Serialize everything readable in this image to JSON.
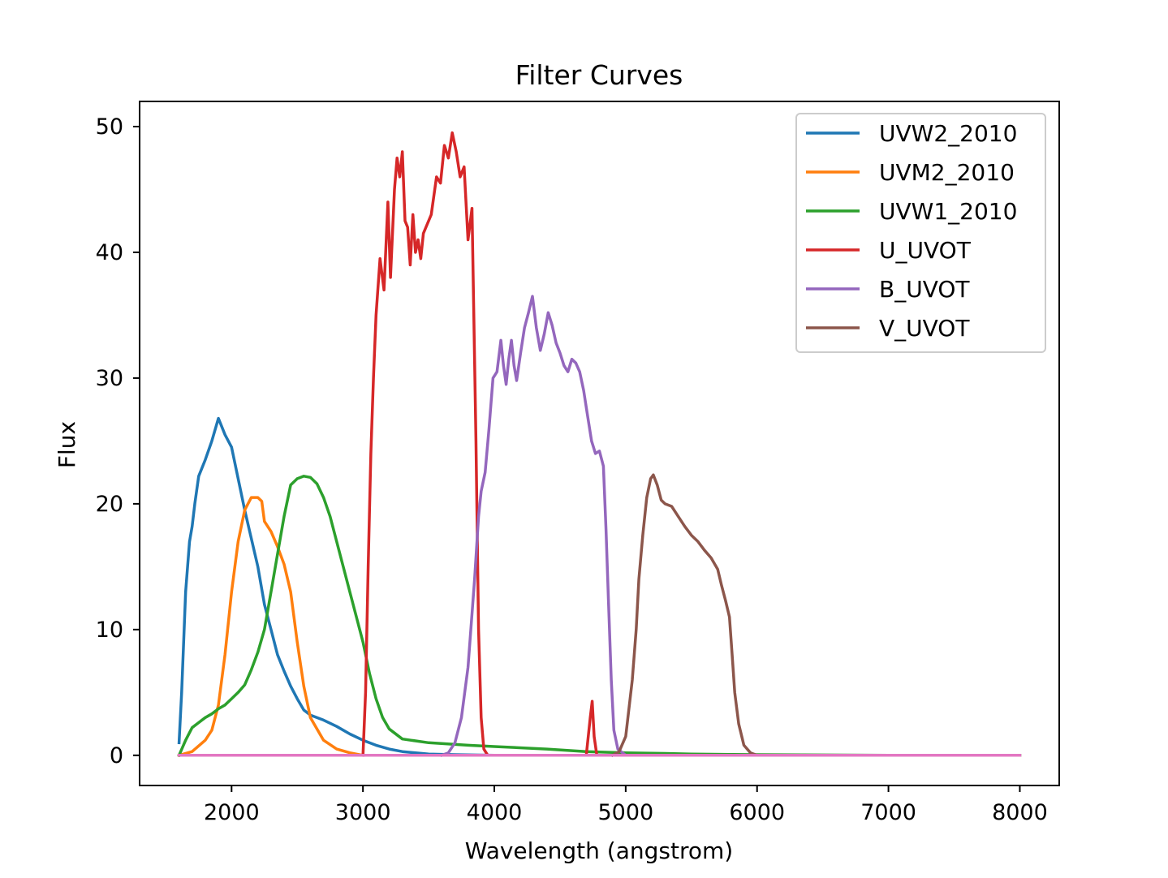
{
  "chart_data": {
    "type": "line",
    "title": "Filter Curves",
    "xlabel": "Wavelength (angstrom)",
    "ylabel": "Flux",
    "xlim": [
      1300,
      8300
    ],
    "ylim": [
      -2.4,
      52
    ],
    "xticks": [
      2000,
      3000,
      4000,
      5000,
      6000,
      7000,
      8000
    ],
    "yticks": [
      0,
      10,
      20,
      30,
      40,
      50
    ],
    "grid": false,
    "legend_position": "top-right",
    "series": [
      {
        "name": "UVW2_2010",
        "color": "#1f77b4",
        "points": [
          [
            1600,
            1
          ],
          [
            1620,
            5
          ],
          [
            1650,
            13
          ],
          [
            1680,
            17
          ],
          [
            1700,
            18.2
          ],
          [
            1720,
            20
          ],
          [
            1750,
            22.2
          ],
          [
            1800,
            23.5
          ],
          [
            1850,
            25
          ],
          [
            1900,
            26.8
          ],
          [
            1950,
            25.5
          ],
          [
            2000,
            24.5
          ],
          [
            2050,
            22
          ],
          [
            2100,
            19.5
          ],
          [
            2200,
            15
          ],
          [
            2250,
            12
          ],
          [
            2300,
            10
          ],
          [
            2350,
            8
          ],
          [
            2400,
            6.7
          ],
          [
            2450,
            5.5
          ],
          [
            2500,
            4.5
          ],
          [
            2550,
            3.6
          ],
          [
            2600,
            3.2
          ],
          [
            2700,
            2.8
          ],
          [
            2800,
            2.3
          ],
          [
            2900,
            1.7
          ],
          [
            3000,
            1.2
          ],
          [
            3100,
            0.8
          ],
          [
            3200,
            0.5
          ],
          [
            3300,
            0.3
          ],
          [
            3500,
            0.1
          ],
          [
            3700,
            0.05
          ],
          [
            4000,
            0
          ],
          [
            5000,
            0
          ],
          [
            6000,
            0
          ]
        ]
      },
      {
        "name": "UVM2_2010",
        "color": "#ff7f0e",
        "points": [
          [
            1600,
            0
          ],
          [
            1700,
            0.3
          ],
          [
            1800,
            1.2
          ],
          [
            1850,
            2
          ],
          [
            1900,
            4
          ],
          [
            1950,
            8
          ],
          [
            2000,
            13
          ],
          [
            2050,
            17
          ],
          [
            2100,
            19.5
          ],
          [
            2150,
            20.5
          ],
          [
            2200,
            20.5
          ],
          [
            2230,
            20.2
          ],
          [
            2250,
            18.6
          ],
          [
            2300,
            17.8
          ],
          [
            2350,
            16.6
          ],
          [
            2400,
            15.2
          ],
          [
            2450,
            13
          ],
          [
            2500,
            9
          ],
          [
            2550,
            5.5
          ],
          [
            2600,
            3
          ],
          [
            2700,
            1.2
          ],
          [
            2800,
            0.5
          ],
          [
            2900,
            0.2
          ],
          [
            3000,
            0
          ],
          [
            5500,
            0
          ]
        ]
      },
      {
        "name": "UVW1_2010",
        "color": "#2ca02c",
        "points": [
          [
            1600,
            0
          ],
          [
            1650,
            1.2
          ],
          [
            1700,
            2.2
          ],
          [
            1750,
            2.6
          ],
          [
            1800,
            3
          ],
          [
            1850,
            3.3
          ],
          [
            1900,
            3.7
          ],
          [
            1950,
            4
          ],
          [
            2000,
            4.5
          ],
          [
            2050,
            5
          ],
          [
            2100,
            5.6
          ],
          [
            2150,
            6.8
          ],
          [
            2200,
            8.2
          ],
          [
            2250,
            10
          ],
          [
            2300,
            13
          ],
          [
            2350,
            16
          ],
          [
            2400,
            19
          ],
          [
            2450,
            21.5
          ],
          [
            2500,
            22
          ],
          [
            2550,
            22.2
          ],
          [
            2600,
            22.1
          ],
          [
            2650,
            21.6
          ],
          [
            2700,
            20.5
          ],
          [
            2750,
            19
          ],
          [
            2800,
            17
          ],
          [
            2850,
            15
          ],
          [
            2900,
            13
          ],
          [
            2950,
            11
          ],
          [
            3000,
            9
          ],
          [
            3050,
            6.5
          ],
          [
            3100,
            4.5
          ],
          [
            3150,
            3
          ],
          [
            3200,
            2.1
          ],
          [
            3300,
            1.3
          ],
          [
            3500,
            1
          ],
          [
            3800,
            0.8
          ],
          [
            4000,
            0.7
          ],
          [
            4400,
            0.5
          ],
          [
            4700,
            0.3
          ],
          [
            5000,
            0.2
          ],
          [
            5300,
            0.15
          ],
          [
            5500,
            0.1
          ],
          [
            6000,
            0.05
          ],
          [
            7000,
            0
          ],
          [
            8000,
            0
          ]
        ]
      },
      {
        "name": "U_UVOT",
        "color": "#d62728",
        "points": [
          [
            3000,
            0
          ],
          [
            3020,
            5
          ],
          [
            3040,
            15
          ],
          [
            3060,
            24
          ],
          [
            3080,
            30
          ],
          [
            3100,
            35
          ],
          [
            3130,
            39.5
          ],
          [
            3160,
            37
          ],
          [
            3190,
            44
          ],
          [
            3210,
            38
          ],
          [
            3240,
            45
          ],
          [
            3260,
            47.5
          ],
          [
            3280,
            46
          ],
          [
            3300,
            48
          ],
          [
            3320,
            42.5
          ],
          [
            3340,
            42
          ],
          [
            3360,
            39
          ],
          [
            3380,
            43
          ],
          [
            3400,
            40
          ],
          [
            3420,
            41
          ],
          [
            3440,
            39.5
          ],
          [
            3460,
            41.5
          ],
          [
            3480,
            42
          ],
          [
            3520,
            43
          ],
          [
            3560,
            46
          ],
          [
            3590,
            45.5
          ],
          [
            3620,
            48.5
          ],
          [
            3650,
            47.5
          ],
          [
            3680,
            49.5
          ],
          [
            3710,
            48
          ],
          [
            3740,
            46
          ],
          [
            3770,
            46.8
          ],
          [
            3800,
            41
          ],
          [
            3830,
            43.5
          ],
          [
            3860,
            25
          ],
          [
            3880,
            10
          ],
          [
            3900,
            3
          ],
          [
            3920,
            0.5
          ],
          [
            3950,
            0
          ],
          [
            4700,
            0
          ],
          [
            4730,
            3
          ],
          [
            4745,
            4.3
          ],
          [
            4760,
            1.5
          ],
          [
            4780,
            0
          ],
          [
            5000,
            0
          ]
        ]
      },
      {
        "name": "B_UVOT",
        "color": "#9467bd",
        "points": [
          [
            3600,
            0
          ],
          [
            3650,
            0.2
          ],
          [
            3700,
            1
          ],
          [
            3750,
            3
          ],
          [
            3800,
            7
          ],
          [
            3850,
            14
          ],
          [
            3880,
            19
          ],
          [
            3900,
            21
          ],
          [
            3930,
            22.5
          ],
          [
            3960,
            26
          ],
          [
            3990,
            30
          ],
          [
            4020,
            30.5
          ],
          [
            4050,
            33
          ],
          [
            4070,
            31
          ],
          [
            4090,
            29.5
          ],
          [
            4110,
            31.5
          ],
          [
            4130,
            33
          ],
          [
            4150,
            31
          ],
          [
            4170,
            29.8
          ],
          [
            4200,
            32
          ],
          [
            4230,
            34
          ],
          [
            4260,
            35.2
          ],
          [
            4290,
            36.5
          ],
          [
            4320,
            34
          ],
          [
            4350,
            32.2
          ],
          [
            4380,
            33.5
          ],
          [
            4410,
            35.2
          ],
          [
            4440,
            34.2
          ],
          [
            4470,
            32.8
          ],
          [
            4500,
            32
          ],
          [
            4530,
            31
          ],
          [
            4560,
            30.5
          ],
          [
            4590,
            31.5
          ],
          [
            4620,
            31.2
          ],
          [
            4650,
            30.5
          ],
          [
            4680,
            29
          ],
          [
            4710,
            27
          ],
          [
            4740,
            25
          ],
          [
            4770,
            24
          ],
          [
            4800,
            24.2
          ],
          [
            4830,
            23
          ],
          [
            4850,
            18
          ],
          [
            4870,
            12
          ],
          [
            4890,
            6
          ],
          [
            4910,
            2
          ],
          [
            4940,
            0.5
          ],
          [
            5000,
            0
          ],
          [
            5600,
            0
          ],
          [
            6000,
            0
          ]
        ]
      },
      {
        "name": "V_UVOT",
        "color": "#8c564b",
        "points": [
          [
            4900,
            0
          ],
          [
            4950,
            0.3
          ],
          [
            5000,
            1.5
          ],
          [
            5050,
            6
          ],
          [
            5080,
            10
          ],
          [
            5100,
            14
          ],
          [
            5130,
            17.5
          ],
          [
            5160,
            20.5
          ],
          [
            5190,
            22
          ],
          [
            5210,
            22.3
          ],
          [
            5240,
            21.5
          ],
          [
            5270,
            20.3
          ],
          [
            5300,
            20
          ],
          [
            5350,
            19.8
          ],
          [
            5400,
            19
          ],
          [
            5450,
            18.2
          ],
          [
            5500,
            17.5
          ],
          [
            5550,
            17
          ],
          [
            5600,
            16.3
          ],
          [
            5650,
            15.7
          ],
          [
            5700,
            14.8
          ],
          [
            5730,
            13.5
          ],
          [
            5760,
            12.3
          ],
          [
            5790,
            11
          ],
          [
            5810,
            8
          ],
          [
            5830,
            5
          ],
          [
            5860,
            2.5
          ],
          [
            5900,
            0.8
          ],
          [
            5950,
            0.2
          ],
          [
            6000,
            0
          ],
          [
            7000,
            0
          ],
          [
            8000,
            0
          ]
        ]
      },
      {
        "name": "",
        "color": "#e377c2",
        "points": [
          [
            1600,
            0
          ],
          [
            8000,
            0
          ]
        ]
      }
    ]
  }
}
